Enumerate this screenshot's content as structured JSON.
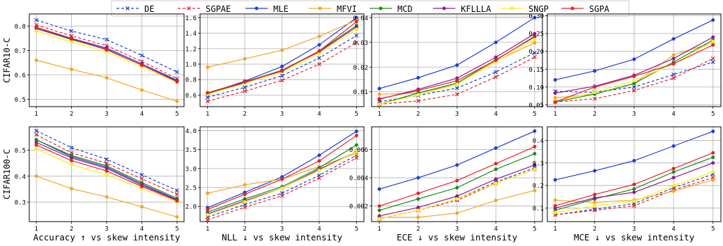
{
  "legend": [
    {
      "name": "DE",
      "color": "#1f3fd6",
      "dash": "4,3",
      "marker": "x"
    },
    {
      "name": "SGPAE",
      "color": "#e8202a",
      "dash": "4,3",
      "marker": "x"
    },
    {
      "name": "MLE",
      "color": "#1f3fd6",
      "dash": "",
      "marker": "o"
    },
    {
      "name": "MFVI",
      "color": "#f5a623",
      "dash": "",
      "marker": "o"
    },
    {
      "name": "MCD",
      "color": "#1b8c1b",
      "dash": "",
      "marker": "o"
    },
    {
      "name": "KFLLLA",
      "color": "#8e1b8e",
      "dash": "",
      "marker": "o"
    },
    {
      "name": "SNGP",
      "color": "#f7f21a",
      "dash": "",
      "marker": "o"
    },
    {
      "name": "SGPA",
      "color": "#e8202a",
      "dash": "",
      "marker": "o"
    }
  ],
  "row_labels": [
    "CIFAR10-C",
    "CIFAR100-C"
  ],
  "column_xlabels": [
    "Accuracy ↑  vs skew intensity",
    "NLL ↓  vs skew intensity",
    "ECE ↓  vs skew intensity",
    "MCE ↓  vs skew intensity"
  ],
  "chart_data": [
    {
      "type": "line",
      "row": 0,
      "col": 0,
      "x": [
        1,
        2,
        3,
        4,
        5
      ],
      "ylim": [
        0.47,
        0.85
      ],
      "yticks": [
        0.5,
        0.6,
        0.7,
        0.8
      ],
      "series": [
        {
          "name": "DE",
          "values": [
            0.825,
            0.78,
            0.745,
            0.68,
            0.612
          ]
        },
        {
          "name": "SGPAE",
          "values": [
            0.805,
            0.76,
            0.72,
            0.655,
            0.585
          ]
        },
        {
          "name": "MLE",
          "values": [
            0.795,
            0.75,
            0.71,
            0.645,
            0.578
          ]
        },
        {
          "name": "MFVI",
          "values": [
            0.66,
            0.623,
            0.588,
            0.538,
            0.492
          ]
        },
        {
          "name": "MCD",
          "values": [
            0.79,
            0.745,
            0.705,
            0.64,
            0.575
          ]
        },
        {
          "name": "KFLLLA",
          "values": [
            0.79,
            0.748,
            0.705,
            0.64,
            0.575
          ]
        },
        {
          "name": "SNGP",
          "values": [
            0.78,
            0.735,
            0.695,
            0.632,
            0.57
          ]
        },
        {
          "name": "SGPA",
          "values": [
            0.795,
            0.748,
            0.703,
            0.64,
            0.572
          ]
        }
      ]
    },
    {
      "type": "line",
      "row": 0,
      "col": 1,
      "x": [
        1,
        2,
        3,
        4,
        5
      ],
      "ylim": [
        0.45,
        1.65
      ],
      "yticks": [
        0.6,
        0.8,
        1.0,
        1.2,
        1.4,
        1.6
      ],
      "series": [
        {
          "name": "DE",
          "values": [
            0.57,
            0.7,
            0.85,
            1.08,
            1.37
          ]
        },
        {
          "name": "SGPAE",
          "values": [
            0.52,
            0.65,
            0.79,
            1.0,
            1.28
          ]
        },
        {
          "name": "MLE",
          "values": [
            0.62,
            0.78,
            0.97,
            1.25,
            1.6
          ]
        },
        {
          "name": "MFVI",
          "values": [
            0.96,
            1.07,
            1.18,
            1.36,
            1.57
          ]
        },
        {
          "name": "MCD",
          "values": [
            0.62,
            0.77,
            0.92,
            1.17,
            1.5
          ]
        },
        {
          "name": "KFLLLA",
          "values": [
            0.61,
            0.76,
            0.92,
            1.16,
            1.48
          ]
        },
        {
          "name": "SNGP",
          "values": [
            0.61,
            0.75,
            0.9,
            1.14,
            1.45
          ]
        },
        {
          "name": "SGPA",
          "values": [
            0.63,
            0.77,
            0.91,
            1.17,
            1.55
          ]
        }
      ]
    },
    {
      "type": "line",
      "row": 0,
      "col": 2,
      "x": [
        1,
        2,
        3,
        4,
        5
      ],
      "ylim": [
        0.004,
        0.0415
      ],
      "yticks": [
        0.01,
        0.02,
        0.03,
        0.04
      ],
      "series": [
        {
          "name": "DE",
          "values": [
            0.006,
            0.0085,
            0.0115,
            0.018,
            0.0258
          ]
        },
        {
          "name": "SGPAE",
          "values": [
            0.005,
            0.0063,
            0.009,
            0.016,
            0.024
          ]
        },
        {
          "name": "MLE",
          "values": [
            0.0113,
            0.0157,
            0.0208,
            0.03,
            0.04
          ]
        },
        {
          "name": "MFVI",
          "values": [
            0.009,
            0.0095,
            0.013,
            0.0225,
            0.0298
          ]
        },
        {
          "name": "MCD",
          "values": [
            0.005,
            0.0095,
            0.0135,
            0.023,
            0.0322
          ]
        },
        {
          "name": "KFLLLA",
          "values": [
            0.007,
            0.011,
            0.0155,
            0.024,
            0.0335
          ]
        },
        {
          "name": "SNGP",
          "values": [
            0.005,
            0.0088,
            0.013,
            0.0222,
            0.0312
          ]
        },
        {
          "name": "SGPA",
          "values": [
            0.0072,
            0.0105,
            0.0145,
            0.0228,
            0.0325
          ]
        }
      ]
    },
    {
      "type": "line",
      "row": 0,
      "col": 3,
      "x": [
        1,
        2,
        3,
        4,
        5
      ],
      "ylim": [
        0.045,
        0.305
      ],
      "yticks": [
        0.05,
        0.1,
        0.15,
        0.2,
        0.25,
        0.3
      ],
      "series": [
        {
          "name": "DE",
          "values": [
            0.088,
            0.085,
            0.1,
            0.135,
            0.17
          ]
        },
        {
          "name": "SGPAE",
          "values": [
            0.058,
            0.067,
            0.09,
            0.125,
            0.18
          ]
        },
        {
          "name": "MLE",
          "values": [
            0.12,
            0.145,
            0.178,
            0.235,
            0.288
          ]
        },
        {
          "name": "MFVI",
          "values": [
            0.07,
            0.08,
            0.11,
            0.19,
            0.225
          ]
        },
        {
          "name": "MCD",
          "values": [
            0.058,
            0.08,
            0.11,
            0.17,
            0.232
          ]
        },
        {
          "name": "KFLLLA",
          "values": [
            0.083,
            0.102,
            0.133,
            0.18,
            0.24
          ]
        },
        {
          "name": "SNGP",
          "values": [
            0.06,
            0.085,
            0.118,
            0.165,
            0.228
          ]
        },
        {
          "name": "SGPA",
          "values": [
            0.058,
            0.1,
            0.13,
            0.165,
            0.218
          ]
        }
      ]
    },
    {
      "type": "line",
      "row": 1,
      "col": 0,
      "x": [
        1,
        2,
        3,
        4,
        5
      ],
      "ylim": [
        0.225,
        0.59
      ],
      "yticks": [
        0.3,
        0.4,
        0.5
      ],
      "series": [
        {
          "name": "DE",
          "values": [
            0.575,
            0.51,
            0.465,
            0.405,
            0.345
          ]
        },
        {
          "name": "SGPAE",
          "values": [
            0.56,
            0.49,
            0.45,
            0.39,
            0.33
          ]
        },
        {
          "name": "MLE",
          "values": [
            0.54,
            0.475,
            0.435,
            0.37,
            0.31
          ]
        },
        {
          "name": "MFVI",
          "values": [
            0.4,
            0.352,
            0.32,
            0.282,
            0.243
          ]
        },
        {
          "name": "MCD",
          "values": [
            0.54,
            0.48,
            0.44,
            0.375,
            0.315
          ]
        },
        {
          "name": "KFLLLA",
          "values": [
            0.53,
            0.47,
            0.43,
            0.365,
            0.308
          ]
        },
        {
          "name": "SNGP",
          "values": [
            0.505,
            0.445,
            0.405,
            0.352,
            0.3
          ]
        },
        {
          "name": "SGPA",
          "values": [
            0.52,
            0.46,
            0.42,
            0.36,
            0.305
          ]
        }
      ]
    },
    {
      "type": "line",
      "row": 1,
      "col": 1,
      "x": [
        1,
        2,
        3,
        4,
        5
      ],
      "ylim": [
        1.6,
        4.1
      ],
      "yticks": [
        2.0,
        2.5,
        3.0,
        3.5,
        4.0
      ],
      "series": [
        {
          "name": "DE",
          "values": [
            1.72,
            2.05,
            2.35,
            2.82,
            3.35
          ]
        },
        {
          "name": "SGPAE",
          "values": [
            1.65,
            1.98,
            2.28,
            2.75,
            3.28
          ]
        },
        {
          "name": "MLE",
          "values": [
            1.97,
            2.37,
            2.78,
            3.35,
            3.98
          ]
        },
        {
          "name": "MFVI",
          "values": [
            2.35,
            2.57,
            2.72,
            3.05,
            3.4
          ]
        },
        {
          "name": "MCD",
          "values": [
            1.85,
            2.2,
            2.52,
            3.02,
            3.62
          ]
        },
        {
          "name": "KFLLLA",
          "values": [
            1.8,
            2.15,
            2.48,
            2.98,
            3.45
          ]
        },
        {
          "name": "SNGP",
          "values": [
            1.78,
            2.12,
            2.48,
            2.95,
            3.45
          ]
        },
        {
          "name": "SGPA",
          "values": [
            1.92,
            2.32,
            2.72,
            3.2,
            3.87
          ]
        }
      ]
    },
    {
      "type": "line",
      "row": 1,
      "col": 2,
      "x": [
        1,
        2,
        3,
        4,
        5
      ],
      "ylim": [
        0.0009,
        0.0076
      ],
      "yticks": [
        0.002,
        0.004,
        0.006
      ],
      "series": [
        {
          "name": "DE",
          "values": [
            0.0011,
            0.0017,
            0.0025,
            0.0037,
            0.0047
          ]
        },
        {
          "name": "SGPAE",
          "values": [
            0.0011,
            0.0017,
            0.0024,
            0.0036,
            0.0046
          ]
        },
        {
          "name": "MLE",
          "values": [
            0.0032,
            0.004,
            0.0049,
            0.0061,
            0.0073
          ]
        },
        {
          "name": "MFVI",
          "values": [
            0.0012,
            0.0012,
            0.0015,
            0.0024,
            0.0031
          ]
        },
        {
          "name": "MCD",
          "values": [
            0.0017,
            0.0025,
            0.0033,
            0.0046,
            0.0057
          ]
        },
        {
          "name": "KFLLLA",
          "values": [
            0.0013,
            0.0019,
            0.0027,
            0.0039,
            0.0049
          ]
        },
        {
          "name": "SNGP",
          "values": [
            0.0011,
            0.0017,
            0.0025,
            0.0036,
            0.0046
          ]
        },
        {
          "name": "SGPA",
          "values": [
            0.002,
            0.0029,
            0.0038,
            0.005,
            0.0062
          ]
        }
      ]
    },
    {
      "type": "line",
      "row": 1,
      "col": 3,
      "x": [
        1,
        2,
        3,
        4,
        5
      ],
      "ylim": [
        0.04,
        0.46
      ],
      "yticks": [
        0.1,
        0.2,
        0.3,
        0.4
      ],
      "series": [
        {
          "name": "DE",
          "values": [
            0.07,
            0.095,
            0.12,
            0.19,
            0.25
          ]
        },
        {
          "name": "SGPAE",
          "values": [
            0.07,
            0.09,
            0.11,
            0.18,
            0.235
          ]
        },
        {
          "name": "MLE",
          "values": [
            0.225,
            0.265,
            0.31,
            0.375,
            0.44
          ]
        },
        {
          "name": "MFVI",
          "values": [
            0.135,
            0.125,
            0.135,
            0.175,
            0.225
          ]
        },
        {
          "name": "MCD",
          "values": [
            0.09,
            0.14,
            0.185,
            0.26,
            0.325
          ]
        },
        {
          "name": "KFLLLA",
          "values": [
            0.1,
            0.145,
            0.17,
            0.235,
            0.3
          ]
        },
        {
          "name": "SNGP",
          "values": [
            0.08,
            0.11,
            0.13,
            0.2,
            0.26
          ]
        },
        {
          "name": "SGPA",
          "values": [
            0.11,
            0.16,
            0.205,
            0.275,
            0.345
          ]
        }
      ]
    }
  ]
}
